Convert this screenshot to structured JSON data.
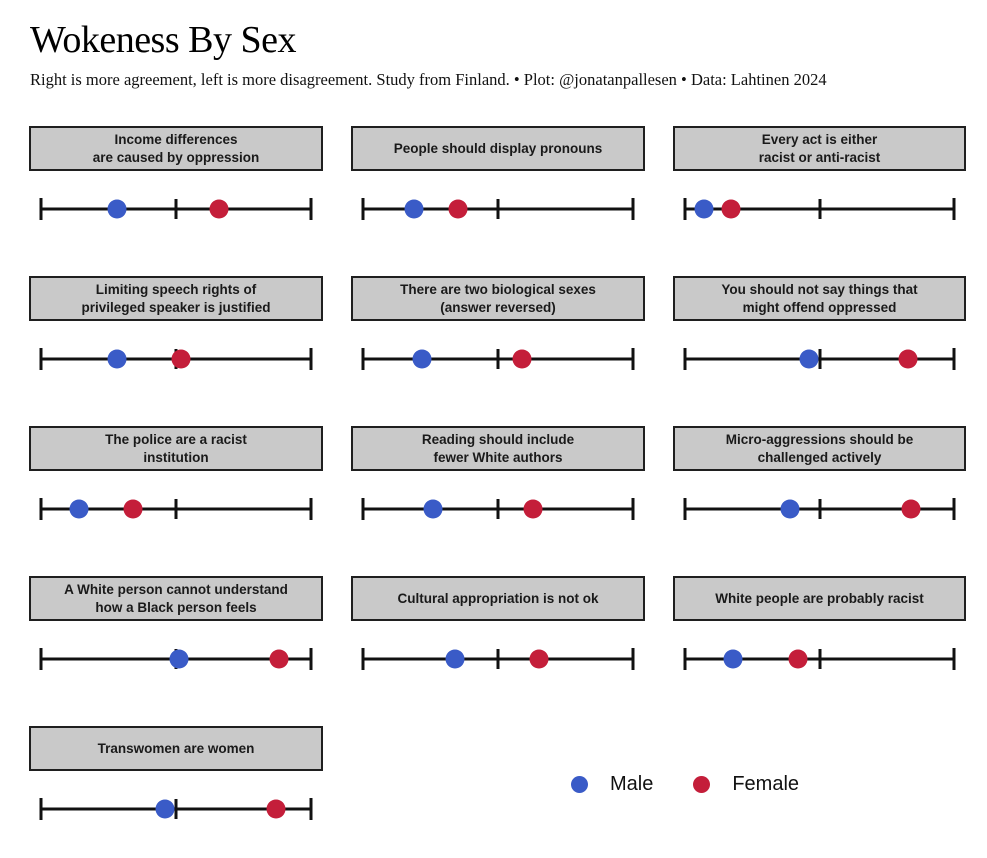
{
  "header": {
    "title": "Wokeness By Sex",
    "subtitle": "Right is more agreement, left is more disagreement. Study from Finland. • Plot: @jonatanpallesen • Data: Lahtinen 2024"
  },
  "legend": {
    "male_label": "Male",
    "female_label": "Female"
  },
  "colors": {
    "male": "#3A5BC7",
    "female": "#C41E3A",
    "panel_fill": "#C9C9C9",
    "panel_border": "#1F1F1F",
    "axis": "#111111"
  },
  "chart_data": {
    "type": "scatter",
    "title": "Wokeness By Sex",
    "subtitle": "Right is more agreement, left is more disagreement. Study from Finland. • Plot: @jonatanpallesen • Data: Lahtinen 2024",
    "description": "Small-multiples dot-strip plot: one horizontal axis per statement, positions are fraction of axis from left (0 = most disagreement) to right (1 = most agreement), middle tick at 0.5.",
    "axis_range": [
      0,
      1
    ],
    "axis_ticks": [
      0,
      0.5,
      1
    ],
    "grid": "off",
    "legend_position": "bottom-center",
    "series_names": [
      "Male",
      "Female"
    ],
    "panels": [
      {
        "title_lines": [
          "Income differences",
          "are caused by oppression"
        ],
        "male": 0.28,
        "female": 0.66
      },
      {
        "title_lines": [
          "People should display pronouns"
        ],
        "male": 0.19,
        "female": 0.35
      },
      {
        "title_lines": [
          "Every act is either",
          "racist or anti-racist"
        ],
        "male": 0.07,
        "female": 0.17
      },
      {
        "title_lines": [
          "Limiting speech rights of",
          "privileged speaker is justified"
        ],
        "male": 0.28,
        "female": 0.52
      },
      {
        "title_lines": [
          "There are two biological sexes",
          "(answer reversed)"
        ],
        "male": 0.22,
        "female": 0.59
      },
      {
        "title_lines": [
          "You should not say things that",
          "might offend oppressed"
        ],
        "male": 0.46,
        "female": 0.83
      },
      {
        "title_lines": [
          "The police are a racist",
          "institution"
        ],
        "male": 0.14,
        "female": 0.34
      },
      {
        "title_lines": [
          "Reading should include",
          "fewer White authors"
        ],
        "male": 0.26,
        "female": 0.63
      },
      {
        "title_lines": [
          "Micro-aggressions should be",
          "challenged actively"
        ],
        "male": 0.39,
        "female": 0.84
      },
      {
        "title_lines": [
          "A White person cannot understand",
          "how a Black person feels"
        ],
        "male": 0.51,
        "female": 0.88
      },
      {
        "title_lines": [
          "Cultural appropriation is not ok"
        ],
        "male": 0.34,
        "female": 0.65
      },
      {
        "title_lines": [
          "White people are probably racist"
        ],
        "male": 0.18,
        "female": 0.42
      },
      {
        "title_lines": [
          "Transwomen are women"
        ],
        "male": 0.46,
        "female": 0.87
      }
    ]
  }
}
